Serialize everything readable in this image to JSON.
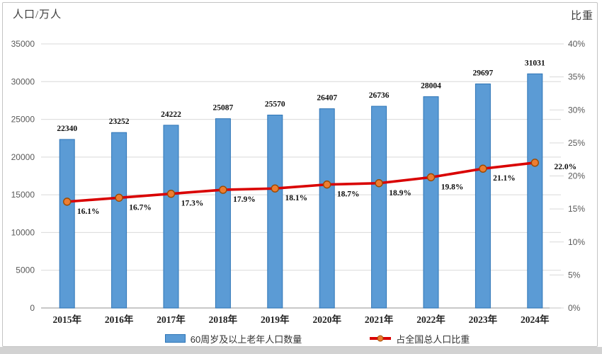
{
  "chart_data": {
    "type": "combo-bar-line",
    "categories": [
      "2015年",
      "2016年",
      "2017年",
      "2018年",
      "2019年",
      "2020年",
      "2021年",
      "2022年",
      "2023年",
      "2024年"
    ],
    "series": [
      {
        "name": "60周岁及以上老年人口数量",
        "type": "bar",
        "axis": "left",
        "values": [
          22340,
          23252,
          24222,
          25087,
          25570,
          26407,
          26736,
          28004,
          29697,
          31031
        ],
        "value_labels": [
          "22340",
          "23252",
          "24222",
          "25087",
          "25570",
          "26407",
          "26736",
          "28004",
          "29697",
          "31031"
        ],
        "fill": "#5B9BD5",
        "stroke": "#2E75B6"
      },
      {
        "name": "占全国总人口比重",
        "type": "line",
        "axis": "right",
        "values": [
          16.1,
          16.7,
          17.3,
          17.9,
          18.1,
          18.7,
          18.9,
          19.8,
          21.1,
          22.0
        ],
        "value_labels": [
          "16.1%",
          "16.7%",
          "17.3%",
          "17.9%",
          "18.1%",
          "18.7%",
          "18.9%",
          "19.8%",
          "21.1%",
          "22.0%"
        ],
        "line_color": "#D90000",
        "marker_fill": "#ED7D31",
        "marker_stroke": "#9C4A00"
      }
    ],
    "left_axis": {
      "label": "人口/万人",
      "min": 0,
      "max": 35000,
      "step": 5000,
      "ticks": [
        "0",
        "5000",
        "10000",
        "15000",
        "20000",
        "25000",
        "30000",
        "35000"
      ]
    },
    "right_axis": {
      "label": "比重",
      "min": 0,
      "max": 40,
      "step": 5,
      "ticks": [
        "0%",
        "5%",
        "10%",
        "15%",
        "20%",
        "25%",
        "30%",
        "35%",
        "40%"
      ]
    },
    "legend": [
      {
        "label": "60周岁及以上老年人口数量",
        "marker": "blue-bar-swatch"
      },
      {
        "label": "占全国总人口比重",
        "marker": "red-line-orange-dot"
      }
    ],
    "grid": "horizontal",
    "legend_position": "bottom",
    "colors": {
      "gridline": "#D9D9D9",
      "axis_line": "#A6A6A6",
      "tick_text": "#595959",
      "frame_border": "#C3C3C3"
    }
  }
}
